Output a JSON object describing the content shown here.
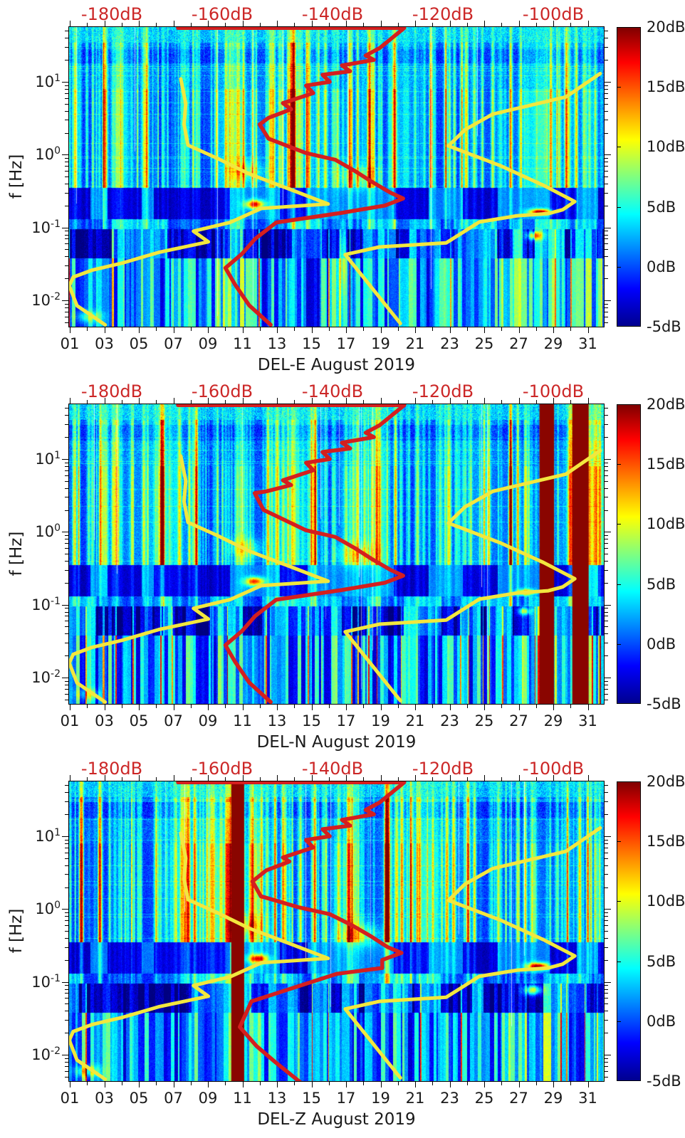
{
  "chart_data": {
    "type": "heatmap",
    "subtype": "seismic spectrograms (power relative, dB) with PSD and noise-model overlay curves",
    "value_unit": "dB",
    "value_range": [
      -5,
      20
    ],
    "x_axis": {
      "tick_labels": [
        "01",
        "03",
        "05",
        "07",
        "09",
        "11",
        "13",
        "15",
        "17",
        "19",
        "21",
        "23",
        "25",
        "27",
        "29",
        "31"
      ],
      "tick_days": [
        1,
        3,
        5,
        7,
        9,
        11,
        13,
        15,
        17,
        19,
        21,
        23,
        25,
        27,
        29,
        31
      ],
      "range_days": [
        1,
        32
      ]
    },
    "y_axis": {
      "label": "f [Hz]",
      "scale": "log",
      "base": "10",
      "exponents": [
        1,
        0,
        -1,
        -2
      ],
      "range_hz": [
        0.0043,
        56
      ]
    },
    "top_axis": {
      "labels": [
        "-180dB",
        "-160dB",
        "-140dB",
        "-120dB",
        "-100dB"
      ],
      "values_db": [
        -180,
        -160,
        -140,
        -120,
        -100
      ],
      "range_db": [
        -187.7,
        -90.8
      ]
    },
    "colorbar": {
      "labels": [
        "20dB",
        "15dB",
        "10dB",
        "5dB",
        "0dB",
        "-5dB"
      ],
      "values_db": [
        20,
        15,
        10,
        5,
        0,
        -5
      ],
      "colormap": "jet"
    },
    "overlays": {
      "low_noise_model_db_by_hz": [
        [
          11,
          -167.5
        ],
        [
          5,
          -166.6
        ],
        [
          2.6,
          -166.9
        ],
        [
          1.35,
          -166.2
        ],
        [
          0.9,
          -161
        ],
        [
          0.54,
          -155
        ],
        [
          0.33,
          -147.5
        ],
        [
          0.21,
          -140.8
        ],
        [
          0.183,
          -152.9
        ],
        [
          0.117,
          -158.6
        ],
        [
          0.089,
          -165.2
        ],
        [
          0.0635,
          -162.5
        ],
        [
          0.0455,
          -171.5
        ],
        [
          0.0326,
          -178
        ],
        [
          0.026,
          -183.5
        ],
        [
          0.0208,
          -187
        ],
        [
          0.0158,
          -187.7
        ],
        [
          0.0084,
          -186.3
        ],
        [
          0.0046,
          -181.2
        ]
      ],
      "high_noise_model_db_by_hz": [
        [
          13,
          -91.5
        ],
        [
          6.2,
          -97.7
        ],
        [
          3.6,
          -111
        ],
        [
          2.2,
          -116
        ],
        [
          1.32,
          -119
        ],
        [
          0.7,
          -109.5
        ],
        [
          0.38,
          -101.8
        ],
        [
          0.227,
          -96.1
        ],
        [
          0.175,
          -98.3
        ],
        [
          0.155,
          -100.9
        ],
        [
          0.145,
          -106.5
        ],
        [
          0.119,
          -113.4
        ],
        [
          0.0614,
          -119.4
        ],
        [
          0.054,
          -131.5
        ],
        [
          0.0424,
          -137.7
        ],
        [
          0.0048,
          -127.7
        ]
      ]
    },
    "texture": {
      "microseism_patches_days": [
        [
          2.2,
          3.2
        ],
        [
          5.2,
          5.9
        ],
        [
          10.3,
          13.2
        ],
        [
          14.8,
          19.8
        ],
        [
          21.8,
          23.8
        ],
        [
          25.8,
          28.8
        ],
        [
          30.4,
          31.6
        ]
      ],
      "lowfreq_boost_days": [
        [
          9.5,
          12.1
        ],
        [
          16.2,
          17.4
        ],
        [
          26,
          29.5
        ],
        [
          30.9,
          32
        ]
      ]
    },
    "hotspot_fields": [
      "day",
      "freq_hz",
      "amplitude_db",
      "radius_x_px",
      "radius_y_px"
    ],
    "panels": [
      {
        "id": "DEL-E",
        "xlabel": "DEL-E August 2019",
        "maroon_bands_days": [],
        "hotspots": [
          [
            11.7,
            0.21,
            15,
            13,
            6
          ],
          [
            11.2,
            0.6,
            5,
            22,
            14
          ],
          [
            17.6,
            0.5,
            5,
            28,
            16
          ],
          [
            28.2,
            0.165,
            17,
            15,
            4
          ],
          [
            27.9,
            0.078,
            12,
            11,
            6
          ],
          [
            2.1,
            0.006,
            6,
            18,
            8
          ],
          [
            16.8,
            0.03,
            4,
            5,
            40
          ]
        ],
        "psd_curve_db_by_hz": [
          [
            55,
            -168
          ],
          [
            55,
            -127
          ],
          [
            29,
            -131.5
          ],
          [
            23,
            -134
          ],
          [
            20,
            -132.5
          ],
          [
            16.8,
            -138.3
          ],
          [
            14,
            -136.8
          ],
          [
            12.5,
            -141.8
          ],
          [
            10,
            -140.5
          ],
          [
            8.9,
            -144.8
          ],
          [
            7,
            -143.5
          ],
          [
            5.1,
            -149
          ],
          [
            4.2,
            -147.5
          ],
          [
            3.2,
            -151.6
          ],
          [
            2.6,
            -153.2
          ],
          [
            1.66,
            -151.6
          ],
          [
            1.05,
            -144.8
          ],
          [
            0.85,
            -139.5
          ],
          [
            0.6,
            -136
          ],
          [
            0.42,
            -132.8
          ],
          [
            0.3,
            -129.5
          ],
          [
            0.25,
            -127.2
          ],
          [
            0.2,
            -130.5
          ],
          [
            0.159,
            -138.3
          ],
          [
            0.117,
            -150.2
          ],
          [
            0.07,
            -154
          ],
          [
            0.0435,
            -156.4
          ],
          [
            0.0278,
            -159.4
          ],
          [
            0.0166,
            -157.7
          ],
          [
            0.0085,
            -155.1
          ],
          [
            0.0046,
            -151.2
          ]
        ]
      },
      {
        "id": "DEL-N",
        "xlabel": "DEL-N August 2019",
        "maroon_bands_days": [
          [
            28.2,
            29.05
          ],
          [
            30.1,
            31.05
          ]
        ],
        "hotspots": [
          [
            11.7,
            0.21,
            15,
            13,
            6
          ],
          [
            11.2,
            0.6,
            5,
            22,
            14
          ],
          [
            17.6,
            0.5,
            5,
            28,
            16
          ],
          [
            27.4,
            0.15,
            13,
            12,
            4
          ],
          [
            27.3,
            0.082,
            10,
            9,
            5
          ],
          [
            2.1,
            0.006,
            5,
            18,
            8
          ]
        ],
        "psd_curve_db_by_hz": [
          [
            55,
            -168
          ],
          [
            55,
            -127
          ],
          [
            29,
            -131.5
          ],
          [
            23,
            -134
          ],
          [
            20,
            -132.5
          ],
          [
            16.8,
            -138.3
          ],
          [
            14,
            -136.8
          ],
          [
            12.5,
            -141.8
          ],
          [
            10,
            -140.5
          ],
          [
            8.9,
            -144.8
          ],
          [
            7,
            -143.5
          ],
          [
            5.1,
            -149
          ],
          [
            4.4,
            -147.5
          ],
          [
            3.6,
            -152
          ],
          [
            3.4,
            -154.1
          ],
          [
            2,
            -152.5
          ],
          [
            1.05,
            -144.8
          ],
          [
            0.85,
            -139.5
          ],
          [
            0.6,
            -136
          ],
          [
            0.42,
            -132.8
          ],
          [
            0.3,
            -129.5
          ],
          [
            0.25,
            -127.2
          ],
          [
            0.2,
            -130.5
          ],
          [
            0.159,
            -138.3
          ],
          [
            0.117,
            -150.2
          ],
          [
            0.07,
            -154
          ],
          [
            0.0435,
            -156.4
          ],
          [
            0.0278,
            -159.4
          ],
          [
            0.0166,
            -157.7
          ],
          [
            0.0085,
            -155.1
          ],
          [
            0.0046,
            -151.2
          ]
        ]
      },
      {
        "id": "DEL-Z",
        "xlabel": "DEL-Z August 2019",
        "maroon_bands_days": [
          [
            10.35,
            11.1
          ]
        ],
        "hotspots": [
          [
            11.9,
            0.21,
            15,
            13,
            6
          ],
          [
            11.3,
            0.6,
            5,
            22,
            14
          ],
          [
            17.8,
            0.45,
            6,
            28,
            16
          ],
          [
            28.1,
            0.165,
            18,
            15,
            5
          ],
          [
            27.8,
            0.078,
            13,
            12,
            7
          ],
          [
            2,
            0.006,
            7,
            18,
            8
          ]
        ],
        "psd_curve_db_by_hz": [
          [
            55,
            -168
          ],
          [
            55,
            -127
          ],
          [
            29,
            -131.5
          ],
          [
            23,
            -134
          ],
          [
            20,
            -132.5
          ],
          [
            16.8,
            -138.3
          ],
          [
            14,
            -136.8
          ],
          [
            12.5,
            -141.8
          ],
          [
            10,
            -140.5
          ],
          [
            8.9,
            -144.8
          ],
          [
            7,
            -143.5
          ],
          [
            5.1,
            -149
          ],
          [
            4.5,
            -147.8
          ],
          [
            3.4,
            -152
          ],
          [
            2.4,
            -154.5
          ],
          [
            1.5,
            -153
          ],
          [
            1.05,
            -146
          ],
          [
            0.85,
            -140.5
          ],
          [
            0.6,
            -136.5
          ],
          [
            0.42,
            -133
          ],
          [
            0.3,
            -130
          ],
          [
            0.25,
            -127.5
          ],
          [
            0.2,
            -131
          ],
          [
            0.155,
            -131
          ],
          [
            0.129,
            -139.2
          ],
          [
            0.054,
            -154.7
          ],
          [
            0.024,
            -156.8
          ],
          [
            0.0132,
            -153.8
          ],
          [
            0.0078,
            -150.3
          ],
          [
            0.0041,
            -145.7
          ]
        ]
      }
    ],
    "colors": {
      "psd_curve": "#d41f1f",
      "noise_models": "#f2e73e",
      "top_axis_labels": "#cc2727",
      "maroon_band": "#8a0500",
      "axis_text": "#1a1a1a"
    }
  }
}
